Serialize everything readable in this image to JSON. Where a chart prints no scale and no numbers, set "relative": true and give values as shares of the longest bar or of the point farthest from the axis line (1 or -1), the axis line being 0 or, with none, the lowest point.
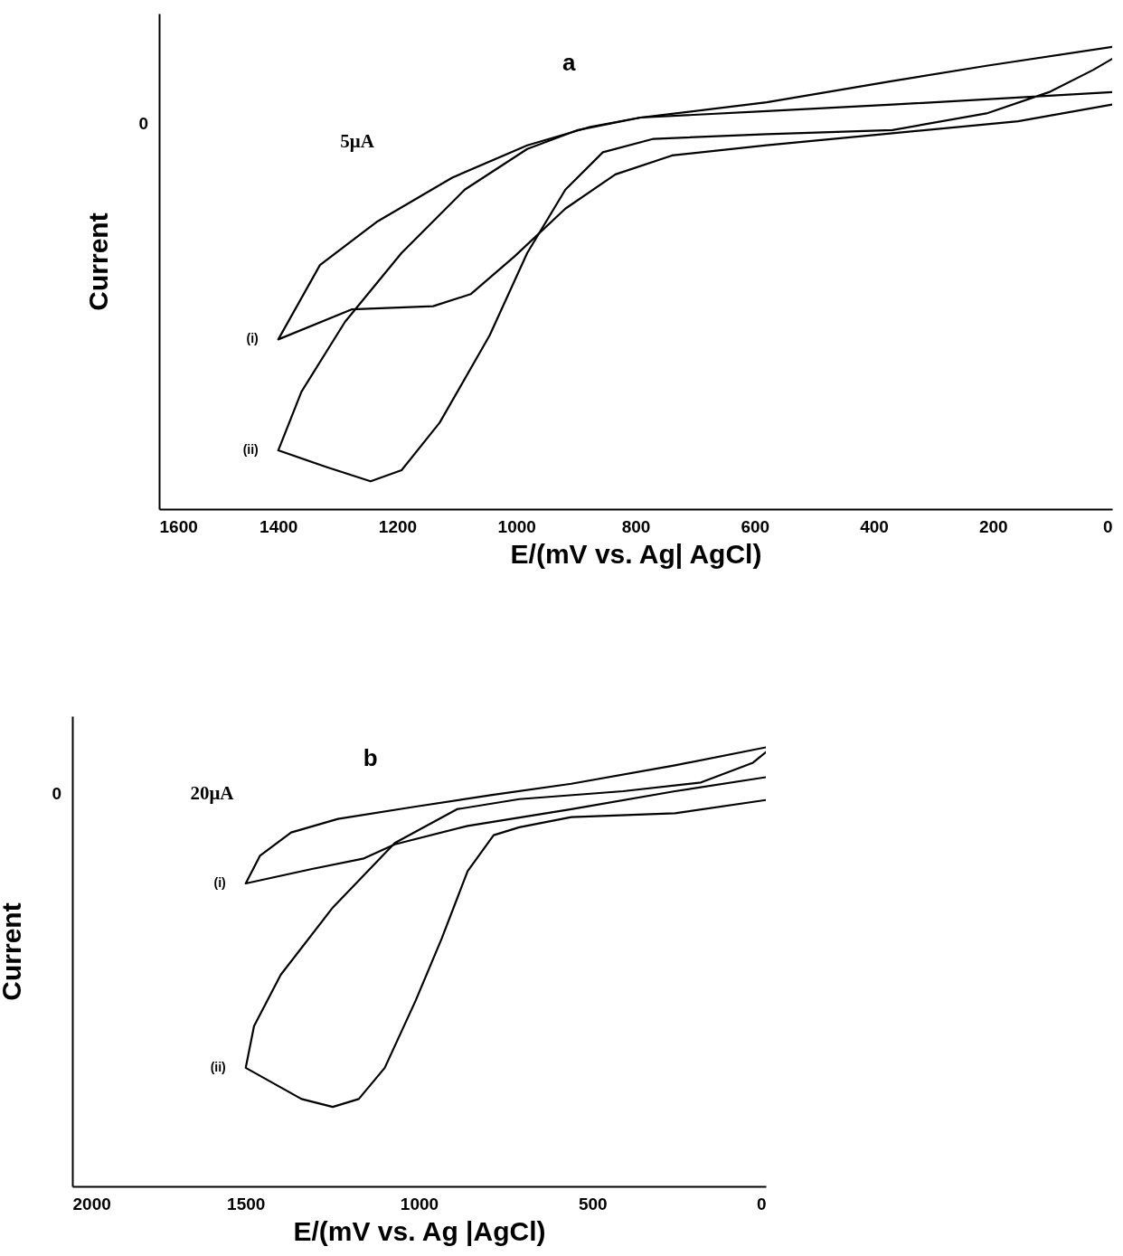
{
  "chart_data": [
    {
      "type": "line",
      "title": "a",
      "xlabel": "E/(mV vs. Ag| AgCl)",
      "ylabel": "Current",
      "xlim": [
        1600,
        0
      ],
      "xticks": [
        1600,
        1400,
        1200,
        1000,
        800,
        600,
        400,
        200,
        0
      ],
      "relative": true,
      "annotations": [
        "0",
        "5μA"
      ],
      "series": [
        {
          "name": "(i)",
          "color": "#000000",
          "x": [
            0,
            211,
            369,
            580,
            792,
            876,
            982,
            1108,
            1235,
            1330,
            1400,
            1277,
            1140,
            1077,
            1003,
            918,
            834,
            739,
            580,
            369,
            158,
            0
          ],
          "values": [
            1,
            0.959,
            0.926,
            0.88,
            0.847,
            0.827,
            0.787,
            0.717,
            0.621,
            0.528,
            0.367,
            0.432,
            0.439,
            0.465,
            0.547,
            0.65,
            0.724,
            0.765,
            0.787,
            0.813,
            0.839,
            0.875
          ]
        },
        {
          "name": "(ii)",
          "color": "#000000",
          "x": [
            0,
            369,
            580,
            792,
            897,
            982,
            1087,
            1193,
            1288,
            1361,
            1400,
            1319,
            1245,
            1193,
            1129,
            1045,
            982,
            918,
            855,
            770,
            580,
            369,
            211,
            106,
            32,
            0
          ],
          "values": [
            0.902,
            0.875,
            0.861,
            0.847,
            0.82,
            0.779,
            0.691,
            0.554,
            0.405,
            0.254,
            0.127,
            0.091,
            0.06,
            0.084,
            0.187,
            0.376,
            0.554,
            0.691,
            0.772,
            0.801,
            0.811,
            0.82,
            0.856,
            0.902,
            0.95,
            0.974
          ]
        }
      ]
    },
    {
      "type": "line",
      "title": "b",
      "xlabel": "E/(mV vs. Ag |AgCl)",
      "ylabel": "Current",
      "xlim": [
        2000,
        0
      ],
      "xticks": [
        2000,
        1500,
        1000,
        500,
        0
      ],
      "relative": true,
      "annotations": [
        "0",
        "20μA"
      ],
      "series": [
        {
          "name": "(i)",
          "color": "#000000",
          "x": [
            0,
            262,
            561,
            785,
            1010,
            1234,
            1369,
            1459,
            1500,
            1309,
            1159,
            1070,
            860,
            561,
            262,
            0
          ],
          "values": [
            1,
            0.959,
            0.917,
            0.892,
            0.865,
            0.837,
            0.806,
            0.753,
            0.69,
            0.723,
            0.747,
            0.779,
            0.821,
            0.859,
            0.9,
            0.932
          ]
        },
        {
          "name": "(ii)",
          "color": "#000000",
          "x": [
            0,
            262,
            561,
            711,
            785,
            860,
            935,
            1010,
            1099,
            1174,
            1249,
            1339,
            1500,
            1476,
            1399,
            1249,
            1070,
            891,
            711,
            412,
            187,
            37,
            0
          ],
          "values": [
            0.88,
            0.85,
            0.841,
            0.818,
            0.8,
            0.718,
            0.564,
            0.423,
            0.27,
            0.199,
            0.181,
            0.199,
            0.27,
            0.365,
            0.482,
            0.635,
            0.782,
            0.859,
            0.882,
            0.9,
            0.92,
            0.965,
            0.989
          ]
        }
      ]
    }
  ]
}
